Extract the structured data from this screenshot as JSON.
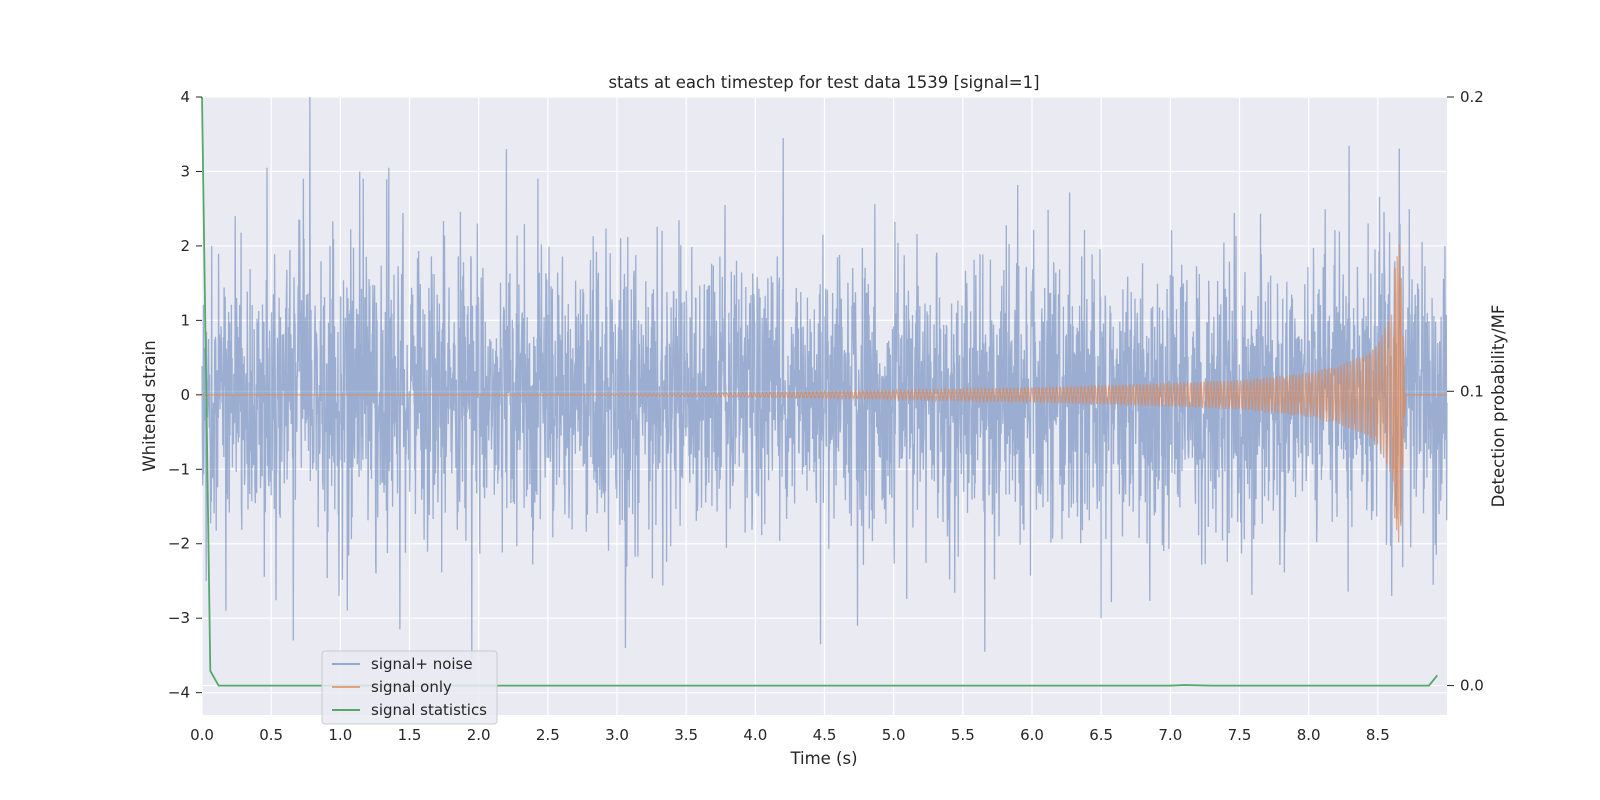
{
  "chart_data": {
    "type": "line",
    "title": "stats at each timestep for test data 1539 [signal=1]",
    "xlabel": "Time (s)",
    "ylabel": "Whitened strain",
    "y2label": "Detection probability/MF",
    "xlim": [
      0.0,
      9.0
    ],
    "ylim": [
      -4.3,
      4.0
    ],
    "y2lim": [
      -0.01,
      0.2
    ],
    "x_ticks": [
      0.0,
      0.5,
      1.0,
      1.5,
      2.0,
      2.5,
      3.0,
      3.5,
      4.0,
      4.5,
      5.0,
      5.5,
      6.0,
      6.5,
      7.0,
      7.5,
      8.0,
      8.5
    ],
    "x_tick_labels": [
      "0.0",
      "0.5",
      "1.0",
      "1.5",
      "2.0",
      "2.5",
      "3.0",
      "3.5",
      "4.0",
      "4.5",
      "5.0",
      "5.5",
      "6.0",
      "6.5",
      "7.0",
      "7.5",
      "8.0",
      "8.5"
    ],
    "y_ticks": [
      4,
      3,
      2,
      1,
      0,
      -1,
      -2,
      -3,
      -4
    ],
    "y_tick_labels": [
      "4",
      "3",
      "2",
      "1",
      "0",
      "−1",
      "−2",
      "−3",
      "−4"
    ],
    "y2_ticks": [
      0.2,
      0.1,
      0.0
    ],
    "y2_tick_labels": [
      "0.2",
      "0.1",
      "0.0"
    ],
    "grid": true,
    "legend_position": "lower-left",
    "series": [
      {
        "name": "signal+ noise",
        "color": "#4c72b0",
        "axis": "left",
        "peak_points": [
          [
            0.03,
            -2.5
          ],
          [
            0.07,
            2.0
          ],
          [
            0.24,
            2.4
          ],
          [
            0.47,
            3.05
          ],
          [
            0.66,
            -3.3
          ],
          [
            0.78,
            4.0
          ],
          [
            0.99,
            -2.7
          ],
          [
            1.14,
            3.0
          ],
          [
            1.35,
            3.05
          ],
          [
            1.43,
            -3.15
          ],
          [
            1.95,
            -3.55
          ],
          [
            2.2,
            3.3
          ],
          [
            3.06,
            -3.4
          ],
          [
            3.78,
            2.55
          ],
          [
            4.2,
            3.45
          ],
          [
            4.47,
            -3.35
          ],
          [
            4.74,
            -3.1
          ],
          [
            5.66,
            -3.45
          ],
          [
            6.5,
            -3.0
          ],
          [
            8.6,
            -2.7
          ],
          [
            8.9,
            -2.55
          ]
        ]
      },
      {
        "name": "signal only",
        "color": "#dd8452",
        "axis": "left",
        "envelope_points": [
          [
            0.0,
            0.0
          ],
          [
            3.0,
            0.01
          ],
          [
            4.0,
            0.03
          ],
          [
            5.0,
            0.06
          ],
          [
            6.0,
            0.1
          ],
          [
            7.0,
            0.16
          ],
          [
            7.5,
            0.2
          ],
          [
            8.0,
            0.3
          ],
          [
            8.3,
            0.45
          ],
          [
            8.5,
            0.7
          ],
          [
            8.6,
            1.1
          ],
          [
            8.66,
            1.6
          ],
          [
            8.7,
            0.0
          ],
          [
            9.0,
            0.0
          ]
        ]
      },
      {
        "name": "signal statistics",
        "color": "#55a868",
        "axis": "right",
        "x": [
          0.0,
          0.06,
          0.12,
          1.0,
          2.0,
          3.0,
          4.0,
          5.0,
          6.0,
          7.0,
          7.1,
          7.3,
          8.0,
          8.5,
          8.87,
          8.93
        ],
        "values": [
          0.2,
          0.005,
          0.0,
          0.0,
          0.0,
          0.0,
          0.0,
          0.0,
          0.0,
          0.0,
          0.0002,
          0.0,
          0.0,
          0.0,
          0.0,
          0.0035
        ]
      }
    ]
  }
}
